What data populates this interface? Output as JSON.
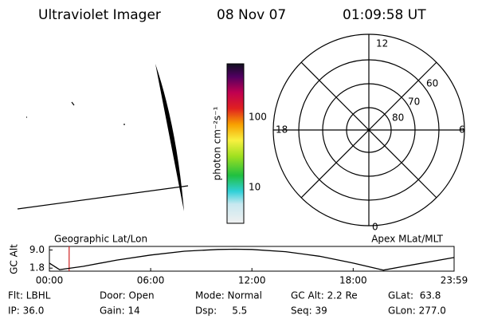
{
  "header": {
    "title": "Ultraviolet Imager",
    "date": "08 Nov 07",
    "time": "01:09:58 UT"
  },
  "colorbar": {
    "label": "photon cm⁻²s⁻¹",
    "ticks": [
      "100",
      "10"
    ]
  },
  "polar": {
    "mlt_labels": [
      "12",
      "18",
      "6",
      "0"
    ],
    "lat_labels": [
      "60",
      "70",
      "80"
    ]
  },
  "alt_plot": {
    "type": "line",
    "ylabel": "GC Alt",
    "left_label": "Geographic Lat/Lon",
    "right_label": "Apex MLat/MLT",
    "x": [
      0,
      0.6,
      2,
      4,
      6,
      8,
      10,
      11,
      12,
      14,
      16,
      18,
      19.8,
      21,
      23.98
    ],
    "values": [
      3.8,
      1.2,
      2.5,
      5.0,
      7.0,
      8.5,
      9.2,
      9.3,
      9.2,
      8.3,
      6.5,
      3.8,
      1.0,
      2.5,
      6.0
    ],
    "color": "#000000",
    "marker_x": 1.17,
    "marker_color": "#d02020",
    "xlim": [
      0,
      23.98
    ],
    "ylim": [
      0.6,
      10.4
    ],
    "xticks": [
      {
        "value": 0,
        "label": "00:00"
      },
      {
        "value": 6,
        "label": "06:00"
      },
      {
        "value": 12,
        "label": "12:00"
      },
      {
        "value": 18,
        "label": "18:00"
      },
      {
        "value": 23.98,
        "label": "23:59"
      }
    ],
    "yticks": [
      {
        "value": 9.0,
        "label": "9.0"
      },
      {
        "value": 1.8,
        "label": "1.8"
      }
    ]
  },
  "info": [
    [
      "Flt: LBHL",
      "Door: Open",
      "Mode: Normal",
      "GC Alt: 2.2 Re",
      "GLat:  63.8"
    ],
    [
      "IP: 36.0",
      "Gain: 14",
      "Dsp:     5.5",
      "Seq: 39",
      "GLon: 277.0"
    ]
  ]
}
